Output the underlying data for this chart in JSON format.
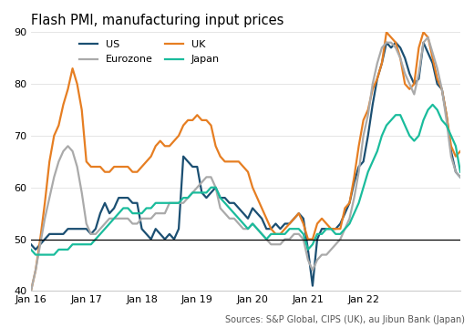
{
  "title": "Flash PMI, manufacturing input prices",
  "source": "Sources: S&P Global, CIPS (UK), au Jibun Bank (Japan)",
  "ylim": [
    40,
    90
  ],
  "yticks": [
    40,
    50,
    60,
    70,
    80,
    90
  ],
  "hline": 50,
  "series": {
    "US": {
      "color": "#1B4F72",
      "linewidth": 1.6,
      "data": [
        49,
        48,
        49,
        50,
        51,
        51,
        51,
        51,
        52,
        52,
        52,
        52,
        52,
        51,
        52,
        55,
        57,
        55,
        56,
        58,
        58,
        58,
        57,
        57,
        52,
        51,
        50,
        52,
        51,
        50,
        51,
        50,
        52,
        66,
        65,
        64,
        64,
        59,
        58,
        59,
        60,
        58,
        58,
        57,
        57,
        56,
        55,
        54,
        56,
        55,
        54,
        52,
        52,
        53,
        52,
        53,
        53,
        54,
        55,
        54,
        48,
        41,
        50,
        52,
        52,
        52,
        52,
        53,
        55,
        57,
        61,
        64,
        65,
        70,
        76,
        81,
        84,
        88,
        87,
        88,
        87,
        85,
        82,
        80,
        81,
        88,
        86,
        84,
        80,
        79,
        74,
        67,
        63,
        62
      ]
    },
    "UK": {
      "color": "#E67E22",
      "linewidth": 1.6,
      "data": [
        40,
        44,
        50,
        57,
        65,
        70,
        72,
        76,
        79,
        83,
        80,
        75,
        65,
        64,
        64,
        64,
        63,
        63,
        64,
        64,
        64,
        64,
        63,
        63,
        64,
        65,
        66,
        68,
        69,
        68,
        68,
        69,
        70,
        72,
        73,
        73,
        74,
        73,
        73,
        72,
        68,
        66,
        65,
        65,
        65,
        65,
        64,
        63,
        60,
        58,
        56,
        54,
        52,
        51,
        51,
        52,
        53,
        54,
        55,
        53,
        50,
        50,
        53,
        54,
        53,
        52,
        52,
        52,
        56,
        57,
        62,
        68,
        73,
        75,
        79,
        81,
        84,
        90,
        89,
        88,
        85,
        80,
        79,
        80,
        87,
        90,
        89,
        85,
        81,
        79,
        74,
        68,
        66,
        67
      ]
    },
    "Eurozone": {
      "color": "#AAAAAA",
      "linewidth": 1.6,
      "data": [
        40,
        44,
        49,
        54,
        58,
        62,
        65,
        67,
        68,
        67,
        64,
        59,
        53,
        51,
        51,
        52,
        53,
        54,
        54,
        54,
        54,
        54,
        53,
        53,
        54,
        54,
        54,
        55,
        55,
        55,
        57,
        57,
        57,
        57,
        58,
        59,
        60,
        61,
        62,
        62,
        60,
        56,
        55,
        54,
        54,
        53,
        52,
        52,
        53,
        52,
        51,
        50,
        49,
        49,
        49,
        50,
        50,
        51,
        51,
        50,
        46,
        44,
        46,
        47,
        47,
        48,
        49,
        50,
        52,
        54,
        58,
        63,
        70,
        74,
        80,
        84,
        87,
        88,
        88,
        87,
        85,
        82,
        80,
        78,
        82,
        88,
        89,
        86,
        83,
        79,
        73,
        66,
        63,
        62
      ]
    },
    "Japan": {
      "color": "#1ABC9C",
      "linewidth": 1.6,
      "data": [
        48,
        47,
        47,
        47,
        47,
        47,
        48,
        48,
        48,
        49,
        49,
        49,
        49,
        49,
        50,
        51,
        52,
        53,
        54,
        55,
        56,
        56,
        55,
        55,
        55,
        56,
        56,
        57,
        57,
        57,
        57,
        57,
        57,
        58,
        58,
        59,
        59,
        59,
        59,
        60,
        60,
        58,
        57,
        56,
        55,
        54,
        53,
        52,
        53,
        52,
        51,
        50,
        51,
        51,
        51,
        51,
        52,
        52,
        52,
        51,
        48,
        49,
        51,
        51,
        52,
        52,
        51,
        51,
        52,
        53,
        55,
        57,
        60,
        63,
        65,
        67,
        70,
        72,
        73,
        74,
        74,
        72,
        70,
        69,
        70,
        73,
        75,
        76,
        75,
        73,
        72,
        70,
        68,
        63
      ]
    }
  },
  "xtick_labels": [
    "Jan 16",
    "Jan 17",
    "Jan 18",
    "Jan 19",
    "Jan 20",
    "Jan 21",
    "Jan 22"
  ],
  "background_color": "#ffffff",
  "title_fontsize": 10.5,
  "source_fontsize": 7
}
